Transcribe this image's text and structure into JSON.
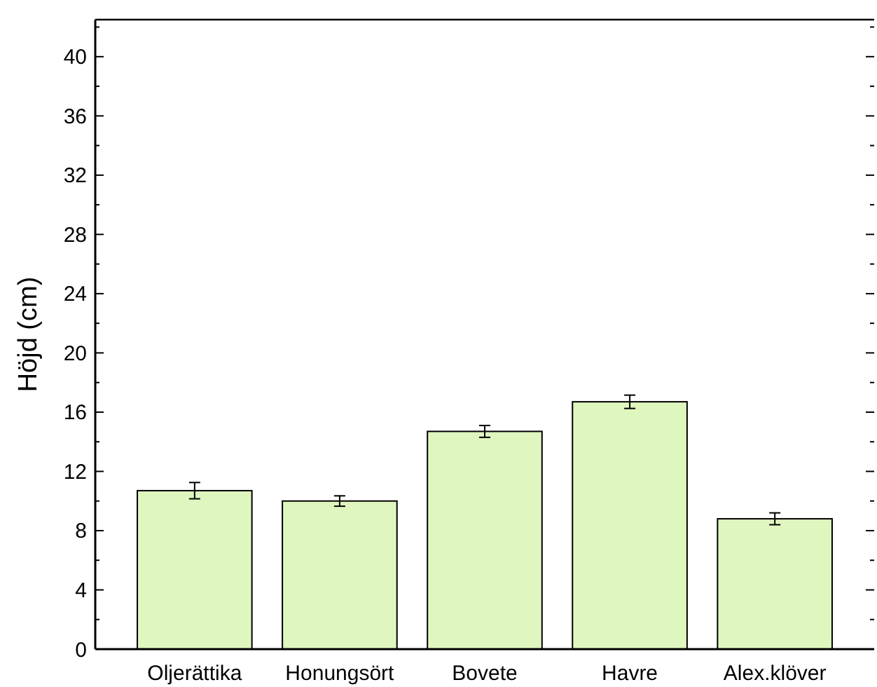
{
  "chart_data": {
    "type": "bar",
    "ylabel": "Höjd (cm)",
    "categories": [
      "Oljerättika",
      "Honungsört",
      "Bovete",
      "Havre",
      "Alex.klöver"
    ],
    "values": [
      10.7,
      10,
      14.7,
      16.7,
      8.8
    ],
    "errors": [
      0.55,
      0.35,
      0.4,
      0.45,
      0.4
    ],
    "color": "#dff7bf",
    "ylim": [
      0,
      42.5
    ],
    "yticks": [
      0,
      {
        "value": 2,
        "label": null
      },
      4,
      {
        "value": 6,
        "label": null
      },
      8,
      {
        "value": 10,
        "label": null
      },
      12,
      {
        "value": 14,
        "label": null
      },
      16,
      {
        "value": 18,
        "label": null
      },
      20,
      {
        "value": 22,
        "label": null
      },
      24,
      {
        "value": 26,
        "label": null
      },
      28,
      {
        "value": 30,
        "label": null
      },
      32,
      {
        "value": 34,
        "label": null
      },
      36,
      {
        "value": 38,
        "label": null
      },
      40,
      {
        "value": 42,
        "label": null
      }
    ],
    "grid": false
  }
}
